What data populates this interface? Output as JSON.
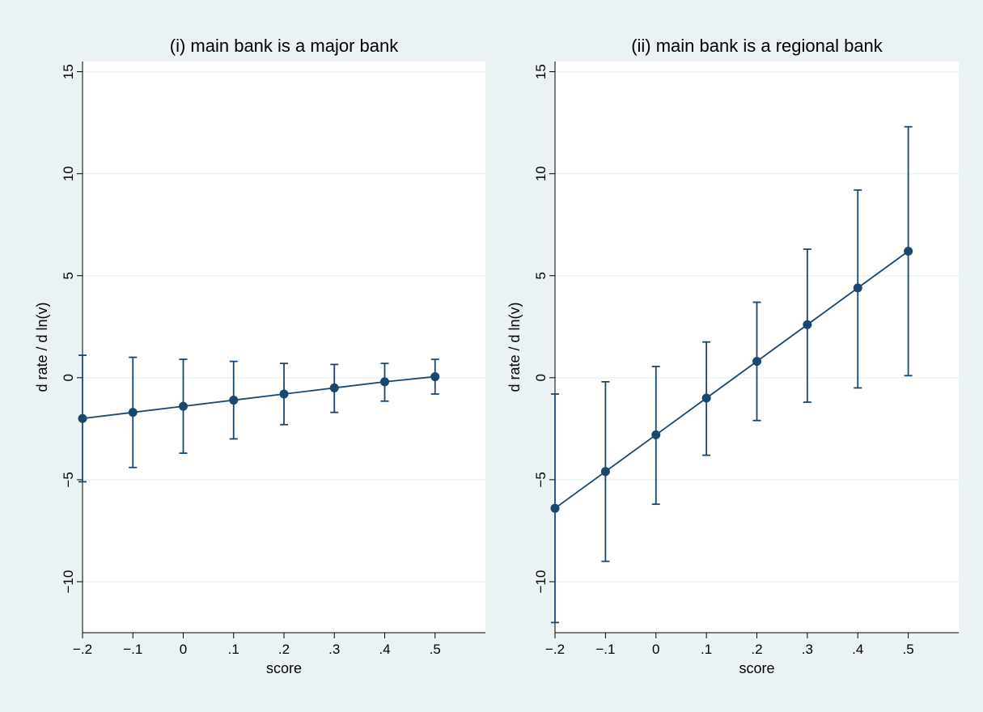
{
  "figure": {
    "background": "#eaf2f3",
    "plot_background": "#ffffff",
    "series_color": "#1a476f",
    "grid_color": "#eaf2f3"
  },
  "chart_data": [
    {
      "type": "line",
      "title": "(i) main bank is a major bank",
      "xlabel": "score",
      "ylabel": "d rate / d ln(v)",
      "xlim": [
        -0.2,
        0.6
      ],
      "ylim": [
        -12.5,
        15.5
      ],
      "x_ticks": [
        -0.2,
        -0.1,
        0,
        0.1,
        0.2,
        0.3,
        0.4,
        0.5
      ],
      "x_tick_labels": [
        "−.2",
        "−.1",
        "0",
        ".1",
        ".2",
        ".3",
        ".4",
        ".5"
      ],
      "y_ticks": [
        -10,
        -5,
        0,
        5,
        10,
        15
      ],
      "y_tick_labels": [
        "−10",
        "−5",
        "0",
        "5",
        "10",
        "15"
      ],
      "grid": true,
      "series": [
        {
          "x": [
            -0.2,
            -0.1,
            0,
            0.1,
            0.2,
            0.3,
            0.4,
            0.5
          ],
          "y": [
            -2.0,
            -1.7,
            -1.4,
            -1.1,
            -0.8,
            -0.5,
            -0.2,
            0.05
          ],
          "lower": [
            -5.1,
            -4.4,
            -3.7,
            -3.0,
            -2.3,
            -1.7,
            -1.15,
            -0.8
          ],
          "upper": [
            1.1,
            1.0,
            0.9,
            0.8,
            0.7,
            0.65,
            0.7,
            0.9
          ]
        }
      ]
    },
    {
      "type": "line",
      "title": "(ii) main bank is a regional bank",
      "xlabel": "score",
      "ylabel": "d rate / d ln(v)",
      "xlim": [
        -0.2,
        0.6
      ],
      "ylim": [
        -12.5,
        15.5
      ],
      "x_ticks": [
        -0.2,
        -0.1,
        0,
        0.1,
        0.2,
        0.3,
        0.4,
        0.5
      ],
      "x_tick_labels": [
        "−.2",
        "−.1",
        "0",
        ".1",
        ".2",
        ".3",
        ".4",
        ".5"
      ],
      "y_ticks": [
        -10,
        -5,
        0,
        5,
        10,
        15
      ],
      "y_tick_labels": [
        "−10",
        "−5",
        "0",
        "5",
        "10",
        "15"
      ],
      "grid": true,
      "series": [
        {
          "x": [
            -0.2,
            -0.1,
            0,
            0.1,
            0.2,
            0.3,
            0.4,
            0.5
          ],
          "y": [
            -6.4,
            -4.6,
            -2.8,
            -1.0,
            0.8,
            2.6,
            4.4,
            6.2
          ],
          "lower": [
            -12.0,
            -9.0,
            -6.2,
            -3.8,
            -2.1,
            -1.2,
            -0.5,
            0.1
          ],
          "upper": [
            -0.8,
            -0.2,
            0.55,
            1.75,
            3.7,
            6.3,
            9.2,
            12.3
          ]
        }
      ]
    }
  ]
}
